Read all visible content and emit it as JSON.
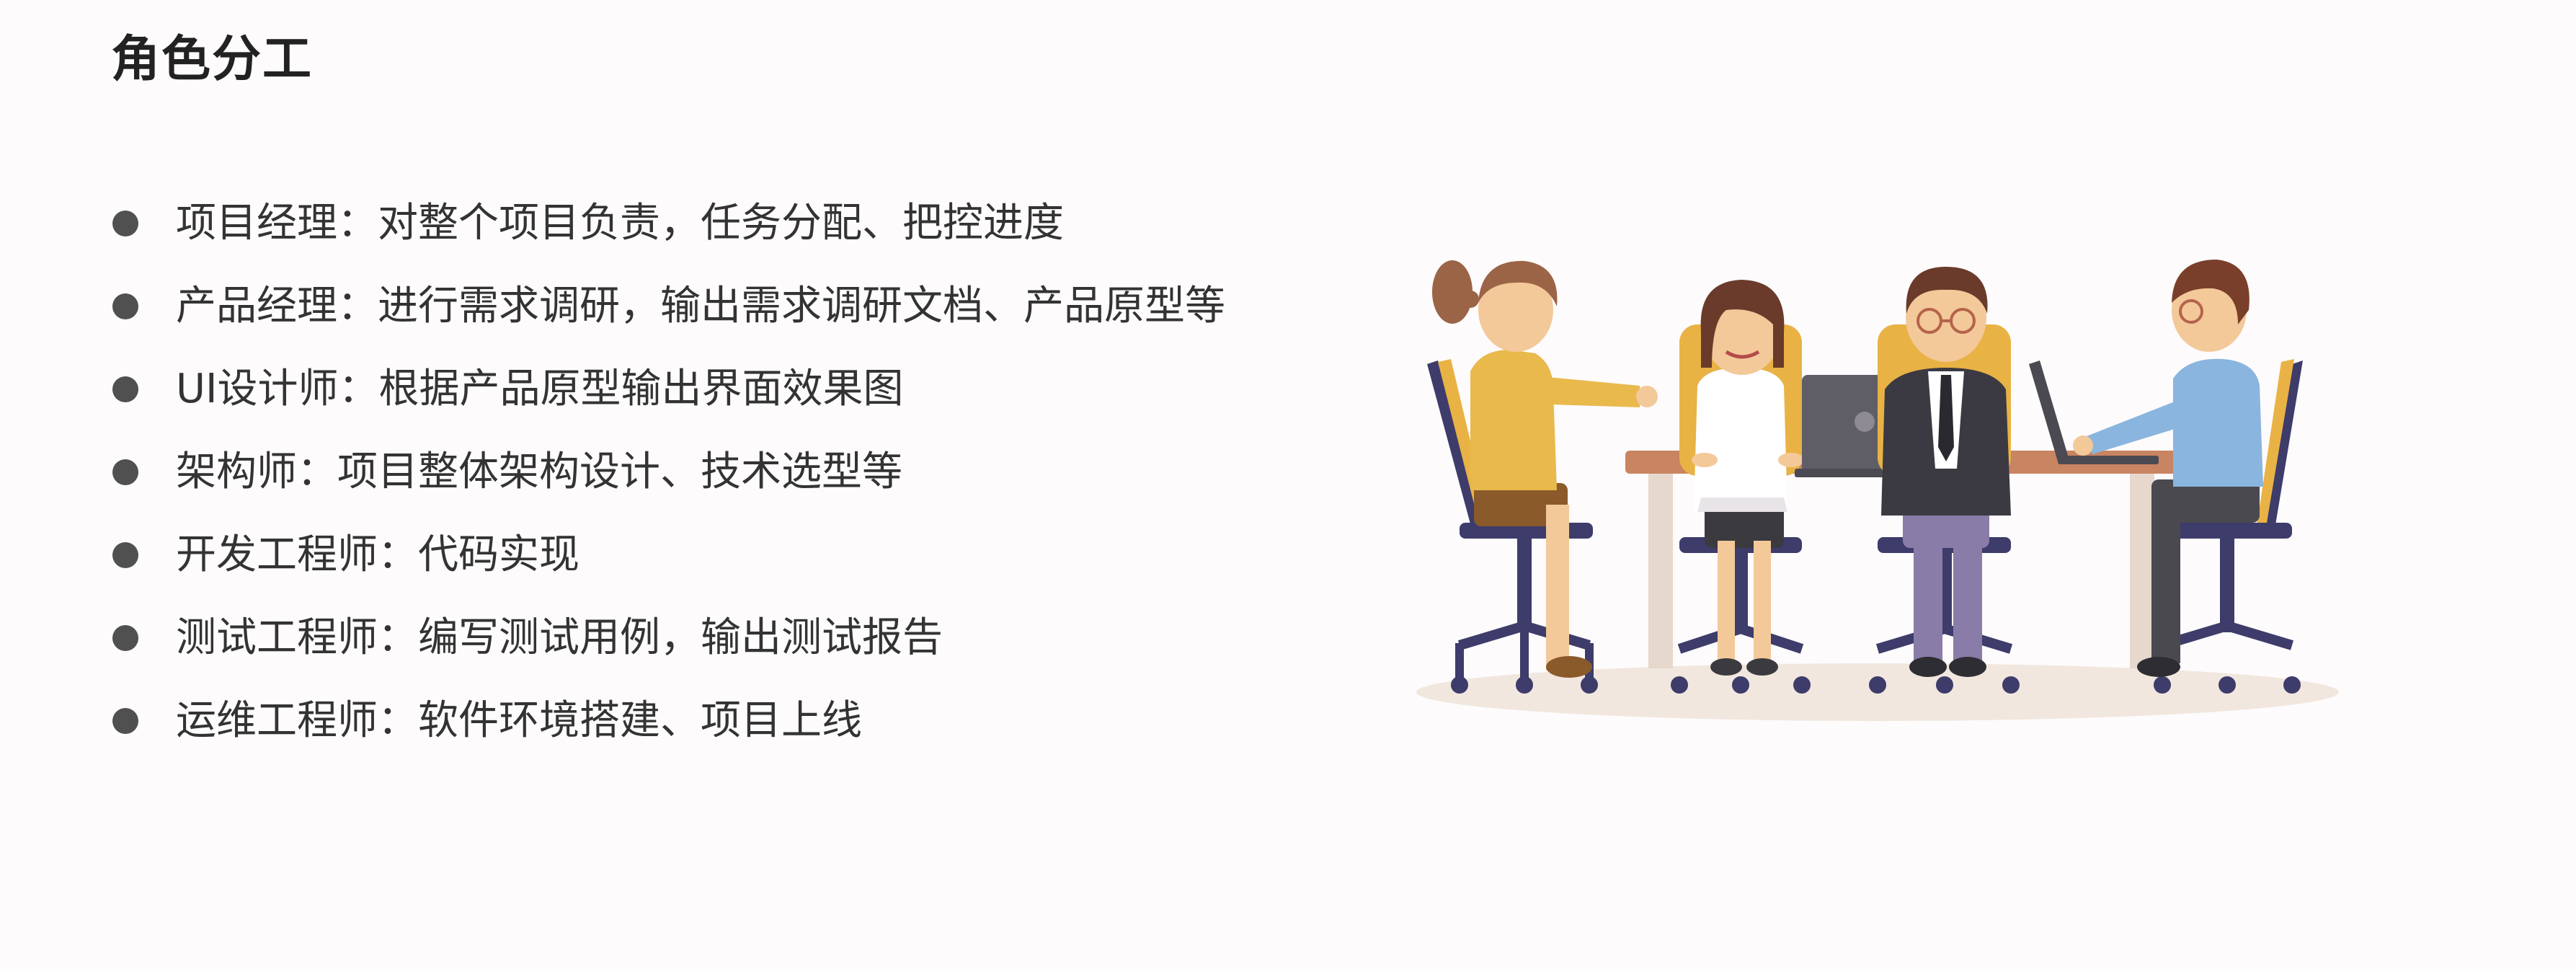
{
  "slide": {
    "title": "角色分工"
  },
  "roles": [
    {
      "text": "项目经理：对整个项目负责，任务分配、把控进度"
    },
    {
      "text": "产品经理：进行需求调研，输出需求调研文档、产品原型等"
    },
    {
      "text": "UI设计师：根据产品原型输出界面效果图"
    },
    {
      "text": "架构师：项目整体架构设计、技术选型等"
    },
    {
      "text": "开发工程师：代码实现"
    },
    {
      "text": "测试工程师：编写测试用例，输出测试报告"
    },
    {
      "text": "运维工程师：软件环境搭建、项目上线"
    }
  ],
  "colors": {
    "bullet": "#505050",
    "title": "#222222",
    "text": "#333333"
  }
}
